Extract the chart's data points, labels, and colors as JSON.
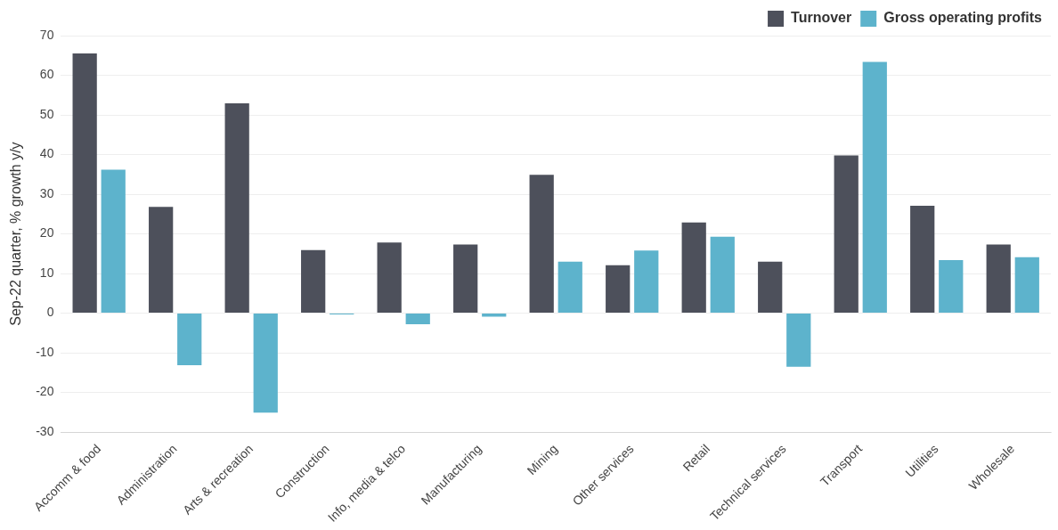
{
  "chart_data": {
    "type": "bar",
    "ylabel": "Sep-22 quarter, % growth y/y",
    "categories": [
      "Accomm & food",
      "Administration",
      "Arts & recreation",
      "Construction",
      "Info, media & telco",
      "Manufacturing",
      "Mining",
      "Other services",
      "Retail",
      "Technical services",
      "Transport",
      "Utilities",
      "Wholesale"
    ],
    "series": [
      {
        "name": "Turnover",
        "color": "#4d505b",
        "values": [
          65.5,
          26.8,
          52.9,
          15.9,
          17.8,
          17.3,
          34.9,
          12.1,
          22.9,
          13.0,
          39.8,
          27.1,
          17.3
        ]
      },
      {
        "name": "Gross operating profits",
        "color": "#5db3cc",
        "values": [
          36.2,
          -13.1,
          -25.1,
          -0.3,
          -2.8,
          -0.9,
          13.0,
          15.8,
          19.3,
          -13.5,
          63.4,
          13.4,
          14.1
        ]
      }
    ],
    "ylim": [
      -30,
      70
    ],
    "yticks": [
      -30,
      -20,
      -10,
      0,
      10,
      20,
      30,
      40,
      50,
      60,
      70
    ],
    "grid": "y",
    "legend": "top right"
  }
}
